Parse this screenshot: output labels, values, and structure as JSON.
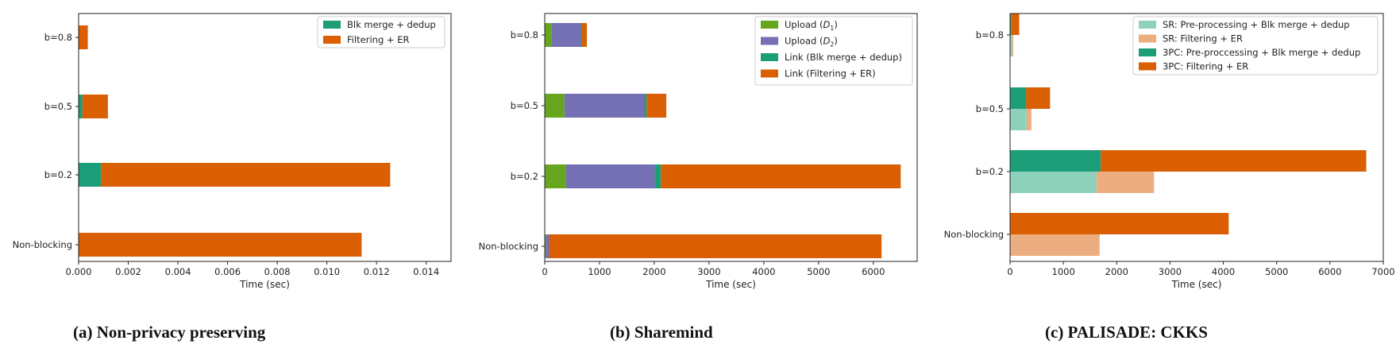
{
  "chart_data": [
    {
      "type": "bar",
      "orientation": "horizontal",
      "stacked": true,
      "caption": "(a) Non-privacy preserving",
      "xlabel": "Time (sec)",
      "xlim": [
        0,
        0.015
      ],
      "xticks": [
        "0.000",
        "0.002",
        "0.004",
        "0.006",
        "0.008",
        "0.010",
        "0.012",
        "0.014"
      ],
      "xtick_values": [
        0,
        0.002,
        0.004,
        0.006,
        0.008,
        0.01,
        0.012,
        0.014
      ],
      "categories": [
        "b=0.8",
        "b=0.5",
        "b=0.2",
        "Non-blocking"
      ],
      "legend_position": "top-right",
      "rows": [
        {
          "category": "b=0.8",
          "segments": [
            {
              "series": 0,
              "start": 0,
              "end": 1e-06
            },
            {
              "series": 1,
              "start": 1e-06,
              "end": 0.00037
            }
          ]
        },
        {
          "category": "b=0.5",
          "segments": [
            {
              "series": 0,
              "start": 0,
              "end": 0.00015
            },
            {
              "series": 1,
              "start": 0.00015,
              "end": 0.00118
            }
          ]
        },
        {
          "category": "b=0.2",
          "segments": [
            {
              "series": 0,
              "start": 0,
              "end": 0.0009
            },
            {
              "series": 1,
              "start": 0.0009,
              "end": 0.01255
            }
          ]
        },
        {
          "category": "Non-blocking",
          "segments": [
            {
              "series": 1,
              "start": 0,
              "end": 0.0114
            }
          ]
        }
      ],
      "series": [
        {
          "name": "Blk merge + dedup",
          "color": "#1b9e77"
        },
        {
          "name": "Filtering + ER",
          "color": "#d95f02"
        }
      ]
    },
    {
      "type": "bar",
      "orientation": "horizontal",
      "stacked": true,
      "caption": "(b) Sharemind",
      "xlabel": "Time (sec)",
      "xlim": [
        0,
        6800
      ],
      "xticks": [
        "0",
        "1000",
        "2000",
        "3000",
        "4000",
        "5000",
        "6000"
      ],
      "xtick_values": [
        0,
        1000,
        2000,
        3000,
        4000,
        5000,
        6000
      ],
      "categories": [
        "b=0.8",
        "b=0.5",
        "b=0.2",
        "Non-blocking"
      ],
      "legend_position": "top-right",
      "rows": [
        {
          "category": "b=0.8",
          "segments": [
            {
              "series": 0,
              "start": 0,
              "end": 120
            },
            {
              "series": 1,
              "start": 120,
              "end": 660
            },
            {
              "series": 2,
              "start": 660,
              "end": 680
            },
            {
              "series": 3,
              "start": 680,
              "end": 770
            }
          ]
        },
        {
          "category": "b=0.5",
          "segments": [
            {
              "series": 0,
              "start": 0,
              "end": 360
            },
            {
              "series": 1,
              "start": 360,
              "end": 1820
            },
            {
              "series": 2,
              "start": 1820,
              "end": 1860
            },
            {
              "series": 3,
              "start": 1860,
              "end": 2220
            }
          ]
        },
        {
          "category": "b=0.2",
          "segments": [
            {
              "series": 0,
              "start": 0,
              "end": 390
            },
            {
              "series": 1,
              "start": 390,
              "end": 2010
            },
            {
              "series": 2,
              "start": 2010,
              "end": 2120
            },
            {
              "series": 3,
              "start": 2120,
              "end": 6500
            }
          ]
        },
        {
          "category": "Non-blocking",
          "segments": [
            {
              "series": 0,
              "start": 0,
              "end": 20
            },
            {
              "series": 1,
              "start": 20,
              "end": 80
            },
            {
              "series": 3,
              "start": 80,
              "end": 6150
            }
          ]
        }
      ],
      "series": [
        {
          "name": "Upload (D₁)",
          "name_main": "Upload (",
          "name_var": "D",
          "name_sub": "1",
          "name_end": ")",
          "color": "#66a61e"
        },
        {
          "name": "Upload (D₂)",
          "name_main": "Upload (",
          "name_var": "D",
          "name_sub": "2",
          "name_end": ")",
          "color": "#7570b3"
        },
        {
          "name": "Link (Blk merge + dedup)",
          "color": "#1b9e77"
        },
        {
          "name": "Link (Filtering + ER)",
          "color": "#d95f02"
        }
      ]
    },
    {
      "type": "bar",
      "orientation": "horizontal",
      "stacked": true,
      "grouped": true,
      "caption": "(c) PALISADE: CKKS",
      "xlabel": "Time (sec)",
      "xlim": [
        0,
        7000
      ],
      "xticks": [
        "0",
        "1000",
        "2000",
        "3000",
        "4000",
        "5000",
        "6000",
        "7000"
      ],
      "xtick_values": [
        0,
        1000,
        2000,
        3000,
        4000,
        5000,
        6000,
        7000
      ],
      "categories": [
        "b=0.8",
        "b=0.5",
        "b=0.2",
        "Non-blocking"
      ],
      "legend_position": "top-right",
      "rows": [
        {
          "category": "b=0.8",
          "sub": "3PC",
          "segments": [
            {
              "series": 2,
              "start": 0,
              "end": 20
            },
            {
              "series": 3,
              "start": 20,
              "end": 170
            }
          ]
        },
        {
          "category": "b=0.8",
          "sub": "SR",
          "segments": [
            {
              "series": 0,
              "start": 0,
              "end": 40
            },
            {
              "series": 1,
              "start": 40,
              "end": 60
            }
          ]
        },
        {
          "category": "b=0.5",
          "sub": "3PC",
          "segments": [
            {
              "series": 2,
              "start": 0,
              "end": 300
            },
            {
              "series": 3,
              "start": 300,
              "end": 750
            }
          ]
        },
        {
          "category": "b=0.5",
          "sub": "SR",
          "segments": [
            {
              "series": 0,
              "start": 0,
              "end": 310
            },
            {
              "series": 1,
              "start": 310,
              "end": 400
            }
          ]
        },
        {
          "category": "b=0.2",
          "sub": "3PC",
          "segments": [
            {
              "series": 2,
              "start": 0,
              "end": 1700
            },
            {
              "series": 3,
              "start": 1700,
              "end": 6680
            }
          ]
        },
        {
          "category": "b=0.2",
          "sub": "SR",
          "segments": [
            {
              "series": 0,
              "start": 0,
              "end": 1620
            },
            {
              "series": 1,
              "start": 1620,
              "end": 2700
            }
          ]
        },
        {
          "category": "Non-blocking",
          "sub": "3PC",
          "segments": [
            {
              "series": 3,
              "start": 0,
              "end": 4100
            }
          ]
        },
        {
          "category": "Non-blocking",
          "sub": "SR",
          "segments": [
            {
              "series": 1,
              "start": 0,
              "end": 1680
            }
          ]
        }
      ],
      "series": [
        {
          "name": "SR: Pre-processing + Blk merge + dedup",
          "color": "#8ed1bb"
        },
        {
          "name": "SR: Filtering + ER",
          "color": "#ecae80"
        },
        {
          "name": "3PC: Pre-proccessing + Blk merge + dedup",
          "color": "#1b9e77"
        },
        {
          "name": "3PC: Filtering + ER",
          "color": "#d95f02"
        }
      ]
    }
  ]
}
